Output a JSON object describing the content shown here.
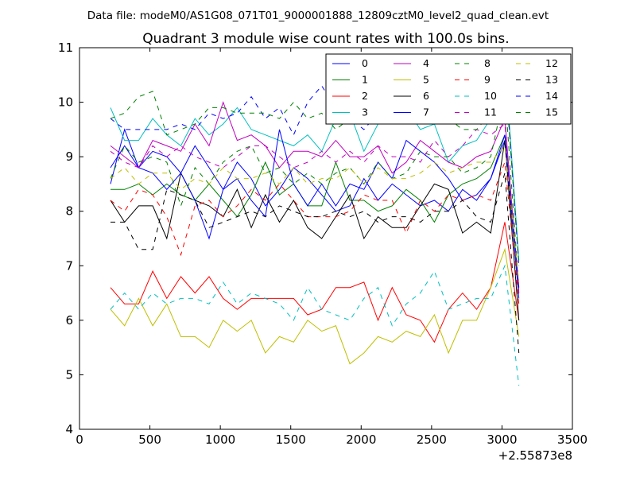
{
  "figure": {
    "suptitle": "Data file: modeM0/AS1G08_071T01_9000001888_12809cztM0_level2_quad_clean.evt",
    "title": "Quadrant 3 module wise count rates with 100.0s bins.",
    "x_offset_label": "+2.55873e8"
  },
  "chart_data": {
    "type": "line",
    "title": "Quadrant 3 module wise count rates with 100.0s bins.",
    "xlabel": "",
    "ylabel": "",
    "xlim": [
      0,
      3500
    ],
    "ylim": [
      4,
      11
    ],
    "x_ticks": [
      0,
      500,
      1000,
      1500,
      2000,
      2500,
      3000,
      3500
    ],
    "y_ticks": [
      4,
      5,
      6,
      7,
      8,
      9,
      10,
      11
    ],
    "grid": false,
    "legend": {
      "position": "top-right",
      "columns": 4
    },
    "x": [
      220,
      320,
      420,
      520,
      620,
      720,
      820,
      920,
      1020,
      1120,
      1220,
      1320,
      1420,
      1520,
      1620,
      1720,
      1820,
      1920,
      2020,
      2120,
      2220,
      2320,
      2420,
      2520,
      2620,
      2720,
      2820,
      2920,
      3020,
      3120
    ],
    "series": [
      {
        "name": "0",
        "color": "#0000ff",
        "dash": "solid",
        "values": [
          8.5,
          9.5,
          8.8,
          9.1,
          9.0,
          8.7,
          9.2,
          8.8,
          8.4,
          8.9,
          8.6,
          8.1,
          8.4,
          8.8,
          8.6,
          8.3,
          8.0,
          8.1,
          8.6,
          8.2,
          8.5,
          8.3,
          8.1,
          8.2,
          8.0,
          8.4,
          8.2,
          8.6,
          9.3,
          6.4
        ]
      },
      {
        "name": "1",
        "color": "#008000",
        "dash": "solid",
        "values": [
          8.4,
          8.4,
          8.5,
          8.3,
          8.5,
          8.3,
          8.2,
          8.5,
          8.2,
          7.9,
          8.3,
          8.9,
          8.3,
          8.5,
          8.1,
          8.1,
          8.9,
          8.2,
          8.2,
          8.0,
          8.1,
          8.4,
          8.2,
          7.8,
          8.3,
          8.5,
          8.6,
          8.8,
          9.4,
          6.5
        ]
      },
      {
        "name": "2",
        "color": "#ff0000",
        "dash": "solid",
        "values": [
          6.6,
          6.3,
          6.3,
          6.9,
          6.4,
          6.8,
          6.5,
          6.8,
          6.4,
          6.2,
          6.4,
          6.4,
          6.4,
          6.4,
          6.1,
          6.2,
          6.6,
          6.6,
          6.7,
          6.0,
          6.6,
          6.1,
          6.0,
          5.6,
          6.2,
          6.5,
          6.2,
          6.6,
          7.8,
          6.0
        ]
      },
      {
        "name": "3",
        "color": "#00bfbf",
        "dash": "solid",
        "values": [
          9.9,
          9.3,
          9.3,
          9.7,
          9.4,
          9.2,
          9.7,
          9.4,
          9.6,
          9.9,
          9.5,
          9.4,
          9.3,
          9.2,
          9.4,
          9.1,
          9.7,
          9.8,
          9.1,
          9.6,
          10.0,
          9.9,
          9.5,
          9.6,
          8.9,
          9.2,
          9.3,
          9.7,
          10.8,
          7.1
        ]
      },
      {
        "name": "4",
        "color": "#bf00bf",
        "dash": "solid",
        "values": [
          9.2,
          9.0,
          8.8,
          9.3,
          9.2,
          9.1,
          9.6,
          9.2,
          10.0,
          9.3,
          9.4,
          9.2,
          8.8,
          9.1,
          9.1,
          9.0,
          9.3,
          9.0,
          9.0,
          9.2,
          8.7,
          8.9,
          9.3,
          9.1,
          8.9,
          8.8,
          9.0,
          9.1,
          9.7,
          6.5
        ]
      },
      {
        "name": "5",
        "color": "#bfbf00",
        "dash": "solid",
        "values": [
          6.2,
          5.9,
          6.4,
          5.9,
          6.3,
          5.7,
          5.7,
          5.5,
          6.0,
          5.8,
          6.0,
          5.4,
          5.7,
          5.6,
          6.0,
          5.8,
          5.9,
          5.2,
          5.4,
          5.7,
          5.6,
          5.8,
          5.7,
          6.1,
          5.4,
          6.0,
          6.0,
          6.6,
          7.3,
          5.7
        ]
      },
      {
        "name": "6",
        "color": "#000000",
        "dash": "solid",
        "values": [
          8.2,
          7.8,
          8.1,
          8.1,
          7.5,
          8.7,
          8.2,
          8.1,
          7.9,
          8.4,
          7.7,
          8.3,
          7.8,
          8.2,
          7.7,
          7.5,
          7.9,
          8.3,
          7.5,
          7.9,
          7.7,
          7.7,
          8.1,
          8.5,
          8.4,
          7.6,
          7.8,
          7.6,
          9.3,
          6.0
        ]
      },
      {
        "name": "7",
        "color": "#0000ff",
        "dash": "solid",
        "values": [
          8.8,
          9.2,
          8.8,
          8.7,
          8.4,
          8.7,
          8.2,
          7.5,
          8.4,
          8.6,
          8.2,
          7.9,
          9.5,
          8.5,
          8.1,
          8.5,
          8.1,
          8.5,
          8.4,
          8.9,
          8.6,
          9.3,
          9.1,
          8.9,
          8.6,
          8.2,
          8.3,
          8.6,
          9.4,
          6.6
        ]
      },
      {
        "name": "8",
        "color": "#008000",
        "dash": "dashed",
        "values": [
          8.6,
          9.2,
          8.9,
          9.0,
          8.9,
          8.1,
          8.8,
          8.5,
          8.9,
          9.1,
          9.2,
          8.7,
          8.8,
          8.5,
          8.7,
          8.5,
          8.7,
          8.8,
          8.5,
          8.9,
          8.6,
          8.7,
          9.1,
          9.0,
          9.0,
          8.7,
          8.8,
          9.0,
          10.2,
          6.6
        ]
      },
      {
        "name": "9",
        "color": "#ff0000",
        "dash": "dashed",
        "values": [
          8.2,
          8.0,
          8.4,
          8.3,
          7.9,
          7.2,
          8.1,
          8.2,
          7.9,
          8.1,
          8.4,
          8.2,
          8.5,
          8.2,
          7.9,
          7.9,
          7.9,
          8.0,
          8.3,
          8.2,
          8.2,
          7.6,
          8.2,
          8.0,
          8.3,
          8.2,
          8.3,
          8.2,
          8.9,
          6.3
        ]
      },
      {
        "name": "10",
        "color": "#00bfbf",
        "dash": "dashed",
        "values": [
          6.2,
          6.5,
          6.2,
          6.5,
          6.3,
          6.4,
          6.4,
          6.3,
          6.7,
          6.3,
          6.5,
          6.4,
          6.3,
          6.0,
          6.6,
          6.2,
          6.1,
          6.0,
          6.4,
          6.6,
          5.9,
          6.3,
          6.5,
          6.9,
          6.2,
          6.3,
          6.4,
          6.4,
          7.0,
          4.8
        ]
      },
      {
        "name": "11",
        "color": "#bf00bf",
        "dash": "dashed",
        "values": [
          9.1,
          8.9,
          8.8,
          9.2,
          9.0,
          9.2,
          9.0,
          8.9,
          8.8,
          9.0,
          9.2,
          9.2,
          9.0,
          8.8,
          8.9,
          9.1,
          8.9,
          9.1,
          8.9,
          9.2,
          9.0,
          9.0,
          8.9,
          9.3,
          9.0,
          9.2,
          9.5,
          9.4,
          9.6,
          6.6
        ]
      },
      {
        "name": "12",
        "color": "#bfbf00",
        "dash": "dashed",
        "values": [
          8.6,
          8.8,
          8.5,
          8.7,
          8.7,
          8.4,
          8.6,
          8.5,
          8.8,
          8.6,
          8.6,
          8.7,
          8.5,
          8.8,
          8.5,
          8.6,
          8.6,
          8.8,
          8.5,
          8.8,
          8.6,
          8.6,
          8.7,
          8.9,
          8.7,
          8.8,
          8.9,
          8.9,
          9.2,
          6.7
        ]
      },
      {
        "name": "13",
        "color": "#000000",
        "dash": "dashed",
        "values": [
          7.8,
          7.8,
          7.3,
          7.3,
          8.4,
          8.3,
          8.2,
          7.7,
          7.8,
          7.9,
          8.0,
          7.9,
          8.1,
          8.0,
          7.9,
          7.9,
          8.0,
          7.9,
          8.0,
          7.8,
          7.9,
          7.9,
          7.8,
          8.0,
          8.0,
          8.2,
          7.9,
          7.8,
          8.7,
          5.4
        ]
      },
      {
        "name": "14",
        "color": "#0000ff",
        "dash": "dashed",
        "values": [
          9.7,
          9.5,
          9.5,
          9.5,
          9.5,
          9.6,
          9.5,
          9.8,
          9.7,
          9.8,
          10.1,
          9.7,
          9.9,
          9.4,
          10.0,
          10.3,
          9.9,
          9.7,
          9.5,
          9.8,
          9.9,
          9.7,
          9.8,
          9.8,
          9.9,
          9.8,
          9.7,
          9.9,
          10.7,
          7.0
        ]
      },
      {
        "name": "15",
        "color": "#008000",
        "dash": "dashed",
        "values": [
          9.7,
          9.8,
          10.1,
          10.2,
          9.4,
          9.5,
          9.6,
          9.9,
          9.9,
          9.8,
          9.8,
          9.8,
          9.7,
          10.0,
          9.7,
          9.8,
          9.5,
          9.7,
          9.7,
          9.8,
          10.1,
          9.9,
          9.6,
          9.7,
          9.7,
          9.5,
          9.5,
          9.8,
          10.6,
          7.0
        ]
      }
    ]
  }
}
